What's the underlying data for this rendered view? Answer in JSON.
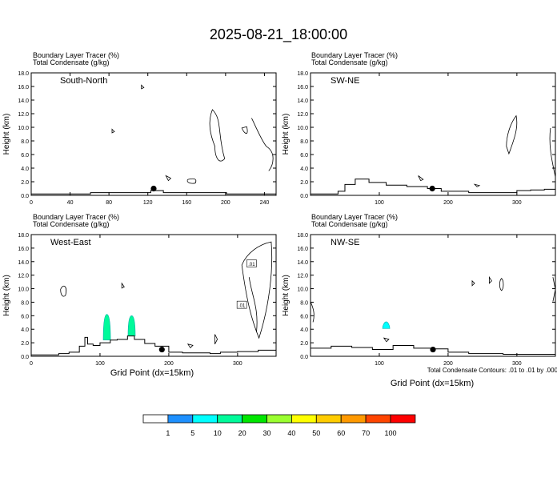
{
  "figure": {
    "title": "2025-08-21_18:00:00",
    "panel_header_line1": "Boundary Layer Tracer   (%)",
    "panel_header_line2": "Total Condensate   (g/kg)",
    "y_axis_label": "Height (km)",
    "x_axis_label": "Grid Point (dx=15km)",
    "contour_note": "Total Condensate Contours: .01 to .01 by .000",
    "contour_label": ".01"
  },
  "colorbar": {
    "colors": [
      "#ffffff",
      "#1e90ff",
      "#00ffff",
      "#00fa9a",
      "#00e600",
      "#9aff30",
      "#ffff00",
      "#ffcc00",
      "#ff9900",
      "#ff4500",
      "#ff0000"
    ],
    "labels": [
      "1",
      "5",
      "10",
      "20",
      "30",
      "40",
      "50",
      "60",
      "70",
      "100"
    ]
  },
  "chart_data": [
    {
      "type": "contour",
      "panel": "South-North",
      "xlim": [
        0,
        252
      ],
      "x_ticks": [
        "0",
        "40",
        "80",
        "120",
        "160",
        "200",
        "240"
      ],
      "ylim": [
        0,
        18
      ],
      "y_ticks": [
        "0.0",
        "2.0",
        "4.0",
        "6.0",
        "8.0",
        "10.0",
        "12.0",
        "14.0",
        "16.0",
        "18.0"
      ],
      "marker_x": 126,
      "terrain": [
        [
          0,
          0.2
        ],
        [
          60,
          0.2
        ],
        [
          61,
          0.4
        ],
        [
          122,
          0.4
        ],
        [
          123,
          0.7
        ],
        [
          135,
          0.7
        ],
        [
          136,
          0.4
        ],
        [
          200,
          0.4
        ],
        [
          201,
          0.2
        ],
        [
          252,
          0.2
        ]
      ],
      "tracer_shading": []
    },
    {
      "type": "contour",
      "panel": "SW-NE",
      "xlim": [
        0,
        356
      ],
      "x_ticks": [
        "100",
        "200",
        "300"
      ],
      "ylim": [
        0,
        18
      ],
      "y_ticks": [
        "0.0",
        "2.0",
        "4.0",
        "6.0",
        "8.0",
        "10.0",
        "12.0",
        "14.0",
        "16.0",
        "18.0"
      ],
      "marker_x": 177,
      "terrain": [
        [
          0,
          0.2
        ],
        [
          20,
          0.2
        ],
        [
          40,
          0.6
        ],
        [
          50,
          1.6
        ],
        [
          65,
          2.4
        ],
        [
          85,
          1.9
        ],
        [
          110,
          1.5
        ],
        [
          140,
          1.3
        ],
        [
          170,
          1.0
        ],
        [
          190,
          0.6
        ],
        [
          230,
          0.4
        ],
        [
          290,
          0.4
        ],
        [
          300,
          0.7
        ],
        [
          320,
          0.8
        ],
        [
          340,
          0.9
        ],
        [
          356,
          1.2
        ]
      ],
      "tracer_shading": []
    },
    {
      "type": "contour",
      "panel": "West-East",
      "xlim": [
        0,
        356
      ],
      "x_ticks": [
        "0",
        "100",
        "200",
        "300"
      ],
      "ylim": [
        0,
        18
      ],
      "y_ticks": [
        "0.0",
        "2.0",
        "4.0",
        "6.0",
        "8.0",
        "10.0",
        "12.0",
        "14.0",
        "16.0",
        "18.0"
      ],
      "marker_x": 190,
      "terrain": [
        [
          0,
          0.2
        ],
        [
          40,
          0.4
        ],
        [
          55,
          0.6
        ],
        [
          70,
          1.5
        ],
        [
          78,
          2.8
        ],
        [
          82,
          1.8
        ],
        [
          90,
          1.6
        ],
        [
          100,
          2.0
        ],
        [
          115,
          2.4
        ],
        [
          125,
          2.5
        ],
        [
          140,
          3.0
        ],
        [
          150,
          2.5
        ],
        [
          165,
          1.9
        ],
        [
          180,
          1.5
        ],
        [
          200,
          0.6
        ],
        [
          220,
          0.5
        ],
        [
          260,
          0.4
        ],
        [
          275,
          0.6
        ],
        [
          300,
          0.7
        ],
        [
          330,
          0.9
        ],
        [
          356,
          1.1
        ]
      ],
      "tracer_shading": [
        {
          "x": 110,
          "ymin": 2.4,
          "ymax": 6.2,
          "max_pct": "10"
        },
        {
          "x": 146,
          "ymin": 3.0,
          "ymax": 6.0,
          "max_pct": "10"
        }
      ]
    },
    {
      "type": "contour",
      "panel": "NW-SE",
      "xlim": [
        0,
        356
      ],
      "x_ticks": [
        "100",
        "200",
        "300"
      ],
      "ylim": [
        0,
        18
      ],
      "y_ticks": [
        "0.0",
        "2.0",
        "4.0",
        "6.0",
        "8.0",
        "10.0",
        "12.0",
        "14.0",
        "16.0",
        "18.0"
      ],
      "marker_x": 178,
      "terrain": [
        [
          0,
          1.2
        ],
        [
          30,
          1.5
        ],
        [
          60,
          1.3
        ],
        [
          90,
          1.0
        ],
        [
          120,
          1.6
        ],
        [
          150,
          1.2
        ],
        [
          180,
          1.1
        ],
        [
          200,
          0.6
        ],
        [
          230,
          0.4
        ],
        [
          280,
          0.3
        ],
        [
          320,
          0.3
        ],
        [
          356,
          0.3
        ]
      ],
      "tracer_shading": [
        {
          "x": 110,
          "ymin": 4.1,
          "ymax": 5.1,
          "max_pct": "5"
        }
      ]
    }
  ]
}
